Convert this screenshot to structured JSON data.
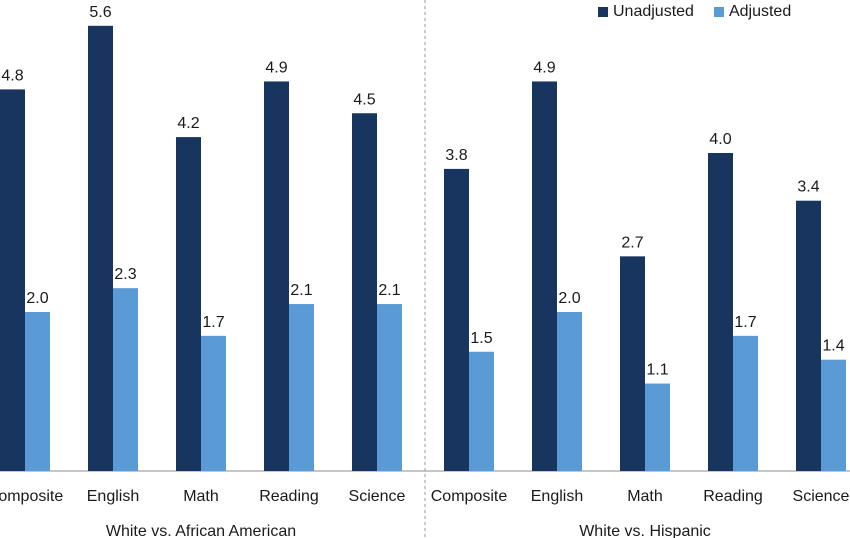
{
  "chart_data": {
    "type": "bar",
    "legend_position": "top-right",
    "legend": [
      {
        "name": "Unadjusted",
        "color": "#17355f"
      },
      {
        "name": "Adjusted",
        "color": "#5b9bd5"
      }
    ],
    "ylim": [
      0,
      5.9
    ],
    "groups": [
      {
        "name": "White vs. African American",
        "categories": [
          "Composite",
          "English",
          "Math",
          "Reading",
          "Science"
        ],
        "series": [
          {
            "name": "Unadjusted",
            "values": [
              4.8,
              5.6,
              4.2,
              4.9,
              4.5
            ]
          },
          {
            "name": "Adjusted",
            "values": [
              2.0,
              2.3,
              1.7,
              2.1,
              2.1
            ]
          }
        ]
      },
      {
        "name": "White vs. Hispanic",
        "categories": [
          "Composite",
          "English",
          "Math",
          "Reading",
          "Science"
        ],
        "series": [
          {
            "name": "Unadjusted",
            "values": [
              3.8,
              4.9,
              2.7,
              4.0,
              3.4
            ]
          },
          {
            "name": "Adjusted",
            "values": [
              1.5,
              2.0,
              1.1,
              1.7,
              1.4
            ]
          }
        ]
      }
    ]
  }
}
